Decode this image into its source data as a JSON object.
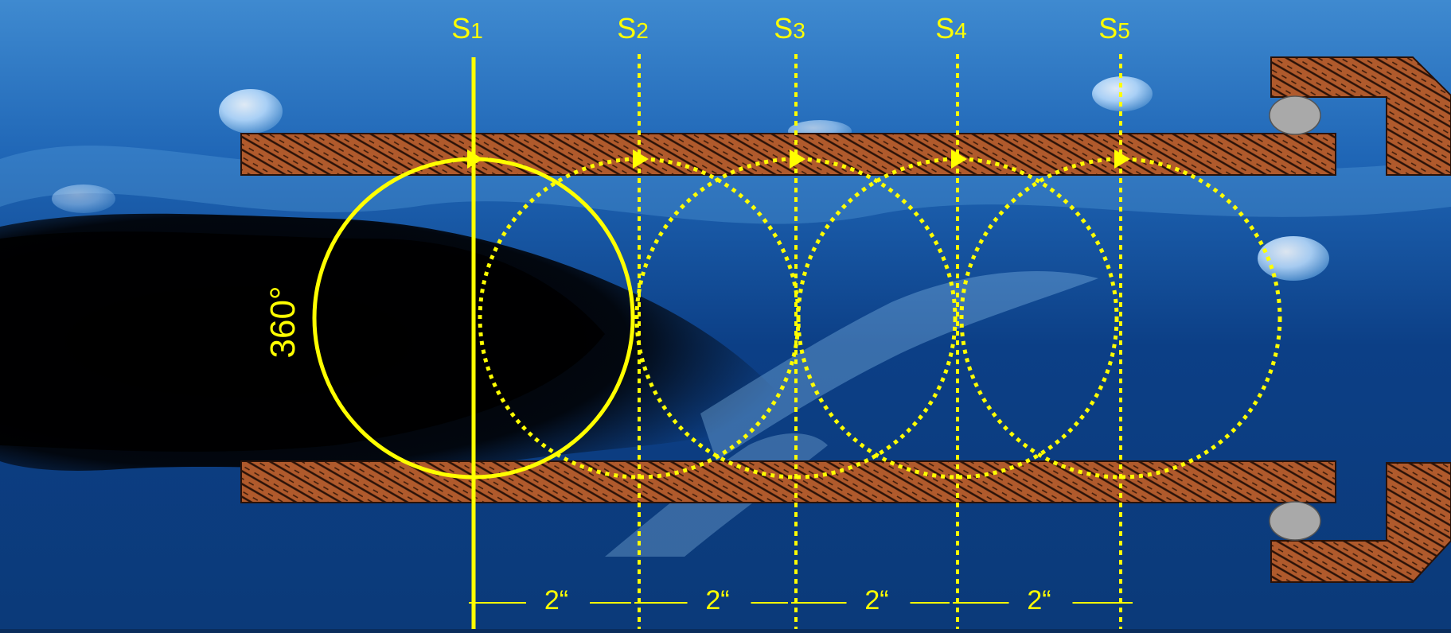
{
  "diagram": {
    "angle_label": "360°",
    "stations": [
      {
        "letter": "S",
        "index": "1",
        "style": "solid"
      },
      {
        "letter": "S",
        "index": "2",
        "style": "dotted"
      },
      {
        "letter": "S",
        "index": "3",
        "style": "dotted"
      },
      {
        "letter": "S",
        "index": "4",
        "style": "dotted"
      },
      {
        "letter": "S",
        "index": "5",
        "style": "dotted"
      }
    ],
    "spacings": [
      "2“",
      "2“",
      "2“",
      "2“"
    ],
    "colors": {
      "annotation": "#ffff00",
      "pipe_wall": "#b05a2c",
      "hatch": "#2a1208",
      "seal": "#a9a9a9",
      "water_light": "#3f8ad0",
      "water_dark": "#06101f"
    }
  }
}
